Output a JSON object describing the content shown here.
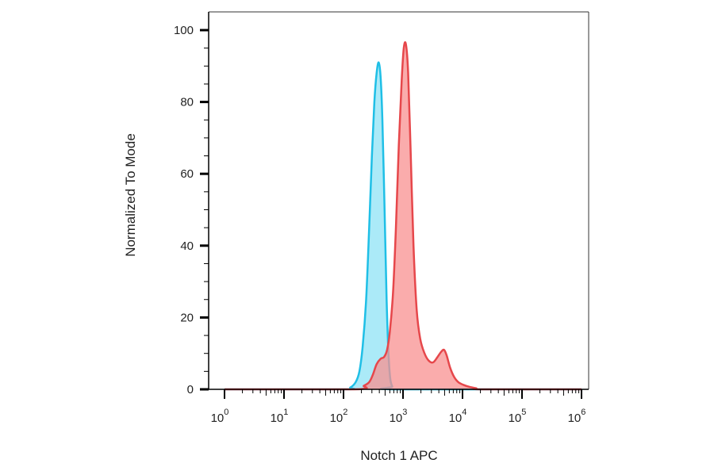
{
  "chart_data": {
    "type": "area",
    "title": "",
    "xlabel": "Notch 1 APC",
    "ylabel": "Normalized To Mode",
    "x_scale": "log",
    "xlim": [
      1,
      1000000
    ],
    "ylim": [
      0,
      100
    ],
    "x_ticks": [
      {
        "base": "10",
        "exp": "0",
        "value": 1
      },
      {
        "base": "10",
        "exp": "1",
        "value": 10
      },
      {
        "base": "10",
        "exp": "2",
        "value": 100
      },
      {
        "base": "10",
        "exp": "3",
        "value": 1000
      },
      {
        "base": "10",
        "exp": "4",
        "value": 10000
      },
      {
        "base": "10",
        "exp": "5",
        "value": 100000
      },
      {
        "base": "10",
        "exp": "6",
        "value": 1000000
      }
    ],
    "y_ticks": [
      "0",
      "20",
      "40",
      "60",
      "80",
      "100"
    ],
    "grid": false,
    "legend": "none",
    "series": [
      {
        "fill": "#8fe3f6",
        "stroke": "#1fbfe6",
        "points": [
          [
            1,
            0
          ],
          [
            100,
            0
          ],
          [
            130,
            0.5
          ],
          [
            160,
            2
          ],
          [
            185,
            5
          ],
          [
            210,
            12
          ],
          [
            240,
            25
          ],
          [
            270,
            45
          ],
          [
            300,
            65
          ],
          [
            330,
            80
          ],
          [
            360,
            88
          ],
          [
            390,
            91
          ],
          [
            420,
            87
          ],
          [
            450,
            75
          ],
          [
            490,
            50
          ],
          [
            530,
            25
          ],
          [
            570,
            10
          ],
          [
            610,
            3
          ],
          [
            660,
            0.8
          ],
          [
            750,
            0
          ],
          [
            1000000,
            0
          ]
        ]
      },
      {
        "fill": "#f89090",
        "stroke": "#e6474b",
        "points": [
          [
            1,
            0
          ],
          [
            150,
            0
          ],
          [
            220,
            1
          ],
          [
            270,
            2
          ],
          [
            310,
            4
          ],
          [
            360,
            7
          ],
          [
            420,
            8.5
          ],
          [
            480,
            9
          ],
          [
            540,
            11
          ],
          [
            600,
            16
          ],
          [
            680,
            27
          ],
          [
            760,
            45
          ],
          [
            850,
            68
          ],
          [
            950,
            86
          ],
          [
            1030,
            95
          ],
          [
            1120,
            96
          ],
          [
            1220,
            88
          ],
          [
            1350,
            65
          ],
          [
            1500,
            40
          ],
          [
            1700,
            22
          ],
          [
            1950,
            14
          ],
          [
            2300,
            10
          ],
          [
            2700,
            8
          ],
          [
            3200,
            7.5
          ],
          [
            3800,
            9
          ],
          [
            4400,
            10.5
          ],
          [
            4900,
            11
          ],
          [
            5400,
            9.5
          ],
          [
            6200,
            6
          ],
          [
            7200,
            3.5
          ],
          [
            8500,
            2
          ],
          [
            10500,
            1.2
          ],
          [
            13000,
            0.7
          ],
          [
            17000,
            0.3
          ],
          [
            22000,
            0
          ],
          [
            1000000,
            0
          ]
        ]
      }
    ]
  }
}
